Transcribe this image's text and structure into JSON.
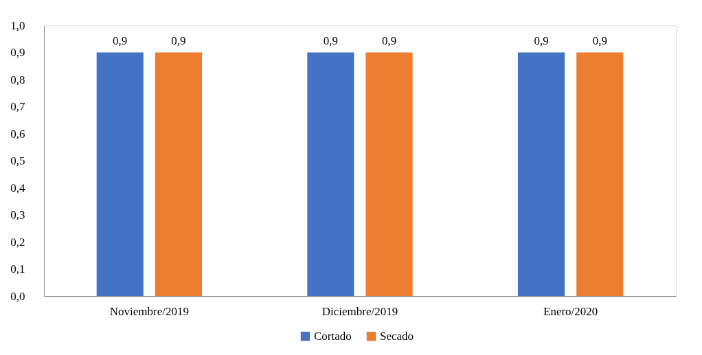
{
  "chart_data": {
    "type": "bar",
    "categories": [
      "Noviembre/2019",
      "Diciembre/2019",
      "Enero/2020"
    ],
    "series": [
      {
        "name": "Cortado",
        "color": "#4472c4",
        "values": [
          0.9,
          0.9,
          0.9
        ],
        "value_labels": [
          "0,9",
          "0,9",
          "0,9"
        ]
      },
      {
        "name": "Secado",
        "color": "#ed7d31",
        "values": [
          0.9,
          0.9,
          0.9
        ],
        "value_labels": [
          "0,9",
          "0,9",
          "0,9"
        ]
      }
    ],
    "ylim": [
      0,
      1.0
    ],
    "yticks": [
      {
        "value": 0,
        "label": "0,0"
      },
      {
        "value": 0.1,
        "label": "0,1"
      },
      {
        "value": 0.2,
        "label": "0,2"
      },
      {
        "value": 0.3,
        "label": "0,3"
      },
      {
        "value": 0.4,
        "label": "0,4"
      },
      {
        "value": 0.5,
        "label": "0,5"
      },
      {
        "value": 0.6,
        "label": "0,6"
      },
      {
        "value": 0.7,
        "label": "0,7"
      },
      {
        "value": 0.8,
        "label": "0,8"
      },
      {
        "value": 0.9,
        "label": "0,9"
      },
      {
        "value": 1.0,
        "label": "1,0"
      }
    ],
    "grid": false,
    "legend": "bottom"
  }
}
